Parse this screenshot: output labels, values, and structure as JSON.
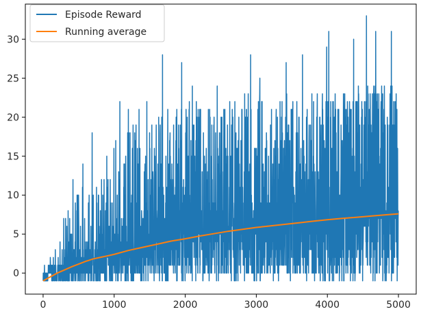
{
  "chart_data": {
    "type": "line",
    "title": "",
    "xlabel": "",
    "ylabel": "",
    "xlim": [
      -250,
      5250
    ],
    "ylim": [
      -2.7,
      34.5
    ],
    "x_ticks": [
      0,
      1000,
      2000,
      3000,
      4000,
      5000
    ],
    "x_tick_labels": [
      "0",
      "1000",
      "2000",
      "3000",
      "4000",
      "5000"
    ],
    "y_ticks": [
      0,
      5,
      10,
      15,
      20,
      25,
      30
    ],
    "y_tick_labels": [
      "0",
      "5",
      "10",
      "15",
      "20",
      "25",
      "30"
    ],
    "grid": false,
    "legend_position": "top-left",
    "episodes": 5000,
    "series": [
      {
        "name": "Episode Reward",
        "color": "#1f77b4",
        "style": "noisy",
        "envelope": {
          "x": [
            0,
            100,
            200,
            300,
            400,
            500,
            600,
            700,
            800,
            1000,
            1200,
            1500,
            1700,
            2000,
            2500,
            3000,
            3500,
            4000,
            4500,
            5000
          ],
          "upper": [
            1,
            2,
            4,
            7,
            10,
            11,
            13,
            14,
            15,
            17,
            19,
            20,
            21,
            22,
            22,
            23,
            23,
            23,
            24,
            24
          ],
          "lower": [
            -1,
            -1,
            -1,
            -1,
            -1,
            -1,
            -1,
            -1,
            -1,
            -1,
            -1,
            -1,
            -1,
            -1,
            -1,
            -1,
            -1,
            -1,
            -1,
            -1
          ],
          "typical_high": [
            0,
            1,
            1,
            2,
            3,
            3,
            4,
            5,
            5,
            7,
            9,
            10,
            12,
            14,
            16,
            17,
            18,
            19,
            20,
            20
          ]
        },
        "peaks": [
          {
            "x": 420,
            "y": 12
          },
          {
            "x": 560,
            "y": 14
          },
          {
            "x": 690,
            "y": 18
          },
          {
            "x": 1080,
            "y": 22
          },
          {
            "x": 1200,
            "y": 21
          },
          {
            "x": 1350,
            "y": 21
          },
          {
            "x": 1460,
            "y": 22
          },
          {
            "x": 1680,
            "y": 28
          },
          {
            "x": 1950,
            "y": 27
          },
          {
            "x": 2100,
            "y": 24
          },
          {
            "x": 2450,
            "y": 24
          },
          {
            "x": 2920,
            "y": 28
          },
          {
            "x": 3050,
            "y": 25
          },
          {
            "x": 3420,
            "y": 27
          },
          {
            "x": 3650,
            "y": 28
          },
          {
            "x": 3990,
            "y": 29
          },
          {
            "x": 4020,
            "y": 31
          },
          {
            "x": 4370,
            "y": 30
          },
          {
            "x": 4550,
            "y": 33
          },
          {
            "x": 4680,
            "y": 31
          },
          {
            "x": 4900,
            "y": 31
          }
        ]
      },
      {
        "name": "Running average",
        "color": "#ff7f0e",
        "x": [
          0,
          100,
          200,
          300,
          400,
          500,
          600,
          700,
          800,
          900,
          1000,
          1200,
          1400,
          1600,
          1800,
          2000,
          2200,
          2400,
          2600,
          2800,
          3000,
          3200,
          3400,
          3600,
          3800,
          4000,
          4200,
          4400,
          4600,
          4800,
          5000
        ],
        "y": [
          -1,
          -0.5,
          0,
          0.4,
          0.8,
          1.15,
          1.5,
          1.8,
          2.0,
          2.2,
          2.4,
          2.9,
          3.3,
          3.7,
          4.1,
          4.4,
          4.75,
          5.05,
          5.35,
          5.6,
          5.85,
          6.05,
          6.25,
          6.45,
          6.65,
          6.85,
          7.0,
          7.15,
          7.3,
          7.45,
          7.6
        ]
      }
    ]
  }
}
